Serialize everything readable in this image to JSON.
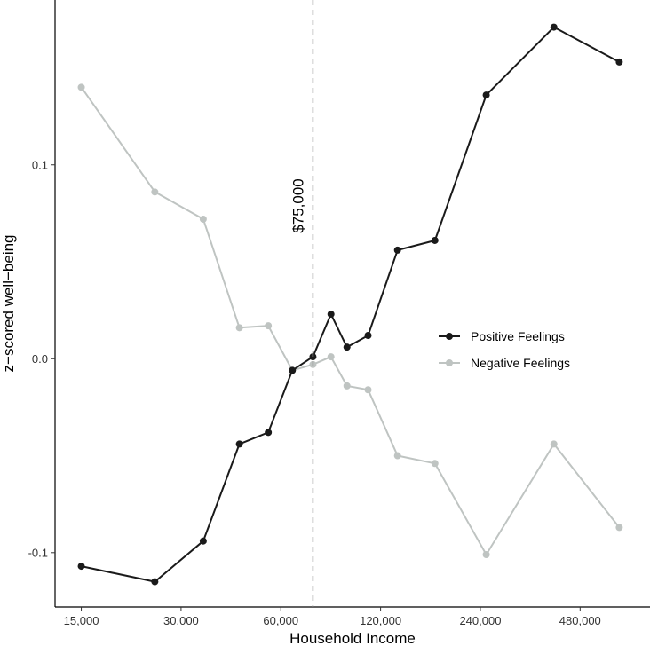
{
  "chart_data": {
    "type": "line",
    "xlabel": "Household Income",
    "ylabel": "z−scored well−being",
    "x_scale": "log",
    "x_ticks": [
      {
        "value": 15000,
        "label": "15,000"
      },
      {
        "value": 30000,
        "label": "30,000"
      },
      {
        "value": 60000,
        "label": "60,000"
      },
      {
        "value": 120000,
        "label": "120,000"
      },
      {
        "value": 240000,
        "label": "240,000"
      },
      {
        "value": 480000,
        "label": "480,000"
      }
    ],
    "y_ticks": [
      {
        "value": -0.1,
        "label": "-0.1"
      },
      {
        "value": 0.0,
        "label": "0.0"
      },
      {
        "value": 0.1,
        "label": "0.1"
      }
    ],
    "xlim": [
      12500,
      780000
    ],
    "ylim": [
      -0.128,
      0.185
    ],
    "grid": false,
    "legend_position": "right-center",
    "reference_line": {
      "value": 75000,
      "label": "$75,000",
      "style": "dashed",
      "color": "#999999"
    },
    "series": [
      {
        "name": "Positive Feelings",
        "color": "#1a1a1a",
        "points": [
          [
            15000,
            -0.107
          ],
          [
            25000,
            -0.115
          ],
          [
            35000,
            -0.094
          ],
          [
            45000,
            -0.044
          ],
          [
            55000,
            -0.038
          ],
          [
            65000,
            -0.006
          ],
          [
            75000,
            0.001
          ],
          [
            85000,
            0.023
          ],
          [
            95000,
            0.006
          ],
          [
            110000,
            0.012
          ],
          [
            135000,
            0.056
          ],
          [
            175000,
            0.061
          ],
          [
            250000,
            0.136
          ],
          [
            400000,
            0.171
          ],
          [
            630000,
            0.153
          ]
        ]
      },
      {
        "name": "Negative Feelings",
        "color": "#bfc4c2",
        "points": [
          [
            15000,
            0.14
          ],
          [
            25000,
            0.086
          ],
          [
            35000,
            0.072
          ],
          [
            45000,
            0.016
          ],
          [
            55000,
            0.017
          ],
          [
            65000,
            -0.006
          ],
          [
            75000,
            -0.003
          ],
          [
            85000,
            0.001
          ],
          [
            95000,
            -0.014
          ],
          [
            110000,
            -0.016
          ],
          [
            135000,
            -0.05
          ],
          [
            175000,
            -0.054
          ],
          [
            250000,
            -0.101
          ],
          [
            400000,
            -0.044
          ],
          [
            630000,
            -0.087
          ]
        ]
      }
    ]
  }
}
